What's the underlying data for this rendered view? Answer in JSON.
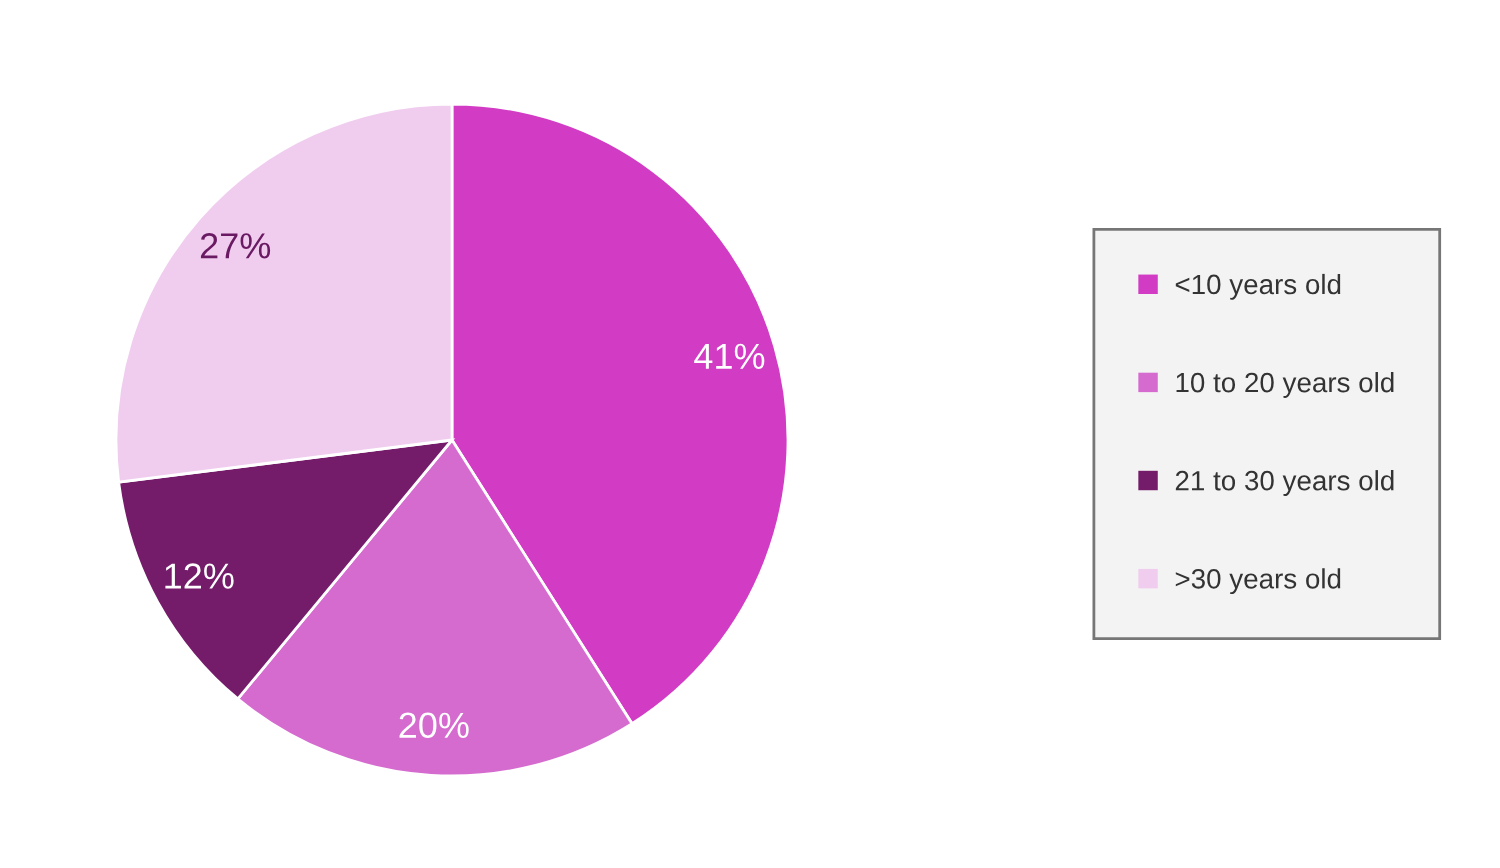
{
  "chart_data": {
    "type": "pie",
    "categories": [
      "<10 years old",
      "10 to 20 years old",
      "21 to 30 years old",
      ">30 years old"
    ],
    "values": [
      41,
      20,
      12,
      27
    ],
    "colors": [
      "#d23bc4",
      "#d56bcf",
      "#741c6a",
      "#f0cdef"
    ],
    "value_labels": [
      "41%",
      "20%",
      "12%",
      "27%"
    ],
    "legend": "right"
  }
}
